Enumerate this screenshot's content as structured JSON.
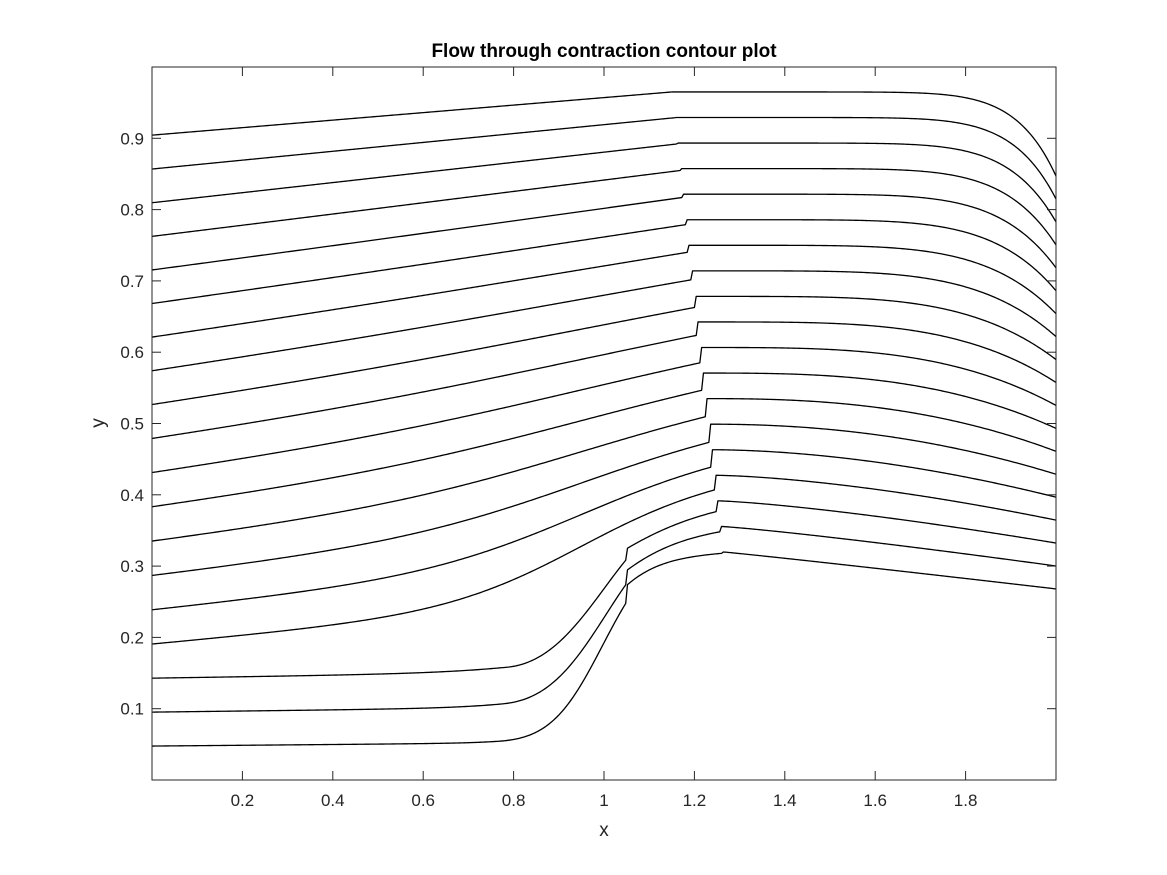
{
  "chart_data": {
    "type": "line",
    "title": "Flow through contraction contour plot",
    "xlabel": "x",
    "ylabel": "y",
    "xlim": [
      0,
      2
    ],
    "ylim": [
      0,
      1
    ],
    "grid": false,
    "legend": "none",
    "box": true,
    "x_ticks": [
      {
        "value": 0.2,
        "label": "0.2"
      },
      {
        "value": 0.4,
        "label": "0.4"
      },
      {
        "value": 0.6,
        "label": "0.6"
      },
      {
        "value": 0.8,
        "label": "0.8"
      },
      {
        "value": 1.0,
        "label": "1"
      },
      {
        "value": 1.2,
        "label": "1.2"
      },
      {
        "value": 1.4,
        "label": "1.4"
      },
      {
        "value": 1.6,
        "label": "1.6"
      },
      {
        "value": 1.8,
        "label": "1.8"
      }
    ],
    "y_ticks": [
      {
        "value": 0.1,
        "label": "0.1"
      },
      {
        "value": 0.2,
        "label": "0.2"
      },
      {
        "value": 0.3,
        "label": "0.3"
      },
      {
        "value": 0.4,
        "label": "0.4"
      },
      {
        "value": 0.5,
        "label": "0.5"
      },
      {
        "value": 0.6,
        "label": "0.6"
      },
      {
        "value": 0.7,
        "label": "0.7"
      },
      {
        "value": 0.8,
        "label": "0.8"
      },
      {
        "value": 0.9,
        "label": "0.9"
      }
    ],
    "contour_lines": {
      "count": 19,
      "start_y_at_x0": 0.0476,
      "step_at_x0": 0.0476,
      "end_y_at_x2_min": 0.268,
      "end_y_at_x2_max": 0.847,
      "step_location_x": 0.95,
      "step_height": 0.265,
      "line_color": "#000000"
    },
    "colors": {
      "line": "#000000",
      "axes": "#262626",
      "background": "#ffffff"
    }
  }
}
